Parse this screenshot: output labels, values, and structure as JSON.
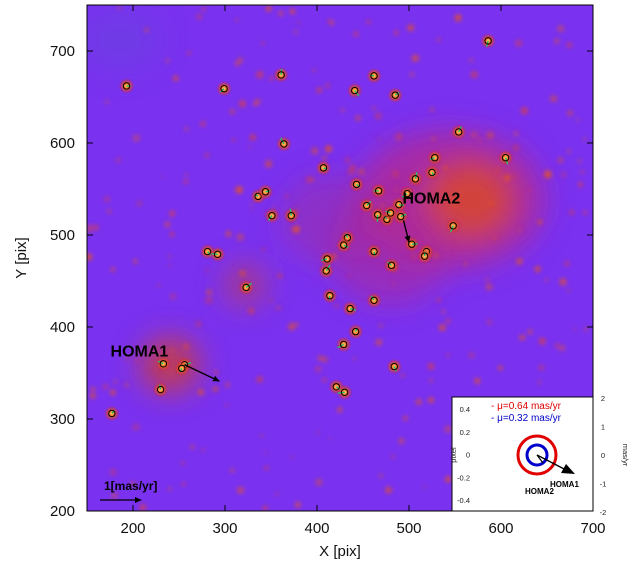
{
  "chart_data": {
    "type": "scatter",
    "xlabel": "X [pix]",
    "ylabel": "Y [pix]",
    "xlim": [
      150,
      700
    ],
    "ylim": [
      200,
      750
    ],
    "xticks": [
      "200",
      "300",
      "400",
      "500",
      "600",
      "700"
    ],
    "yticks": [
      "200",
      "300",
      "400",
      "500",
      "600",
      "700"
    ],
    "xtick_values": [
      200,
      300,
      400,
      500,
      600,
      700
    ],
    "ytick_values": [
      200,
      300,
      400,
      500,
      600,
      700
    ],
    "colors": {
      "background": "#7a32f0",
      "halo": "#e8401a",
      "core": "#ffe070",
      "vector": "#000000",
      "motion": "#18c070",
      "ring_outer": "#e00000",
      "ring_inner": "#0000cc"
    },
    "sources": [
      {
        "x": 193,
        "y": 662
      },
      {
        "x": 299,
        "y": 659
      },
      {
        "x": 361,
        "y": 674
      },
      {
        "x": 441,
        "y": 657
      },
      {
        "x": 462,
        "y": 673
      },
      {
        "x": 485,
        "y": 652
      },
      {
        "x": 586,
        "y": 711
      },
      {
        "x": 364,
        "y": 599
      },
      {
        "x": 407,
        "y": 573
      },
      {
        "x": 528,
        "y": 584
      },
      {
        "x": 554,
        "y": 612
      },
      {
        "x": 605,
        "y": 584
      },
      {
        "x": 336,
        "y": 542
      },
      {
        "x": 344,
        "y": 547
      },
      {
        "x": 351,
        "y": 521
      },
      {
        "x": 372,
        "y": 521
      },
      {
        "x": 443,
        "y": 555
      },
      {
        "x": 467,
        "y": 548
      },
      {
        "x": 454,
        "y": 532
      },
      {
        "x": 466,
        "y": 522
      },
      {
        "x": 476,
        "y": 517
      },
      {
        "x": 489,
        "y": 533
      },
      {
        "x": 498,
        "y": 545
      },
      {
        "x": 507,
        "y": 561
      },
      {
        "x": 525,
        "y": 568
      },
      {
        "x": 480,
        "y": 524
      },
      {
        "x": 491,
        "y": 520
      },
      {
        "x": 548,
        "y": 510
      },
      {
        "x": 433,
        "y": 497
      },
      {
        "x": 429,
        "y": 489
      },
      {
        "x": 411,
        "y": 474
      },
      {
        "x": 410,
        "y": 461
      },
      {
        "x": 462,
        "y": 482
      },
      {
        "x": 481,
        "y": 467
      },
      {
        "x": 503,
        "y": 490
      },
      {
        "x": 519,
        "y": 482
      },
      {
        "x": 517,
        "y": 477
      },
      {
        "x": 281,
        "y": 482
      },
      {
        "x": 292,
        "y": 479
      },
      {
        "x": 323,
        "y": 443
      },
      {
        "x": 414,
        "y": 434
      },
      {
        "x": 462,
        "y": 429
      },
      {
        "x": 436,
        "y": 420
      },
      {
        "x": 429,
        "y": 381
      },
      {
        "x": 442,
        "y": 395
      },
      {
        "x": 484,
        "y": 357
      },
      {
        "x": 233,
        "y": 360
      },
      {
        "x": 256,
        "y": 359
      },
      {
        "x": 253,
        "y": 355
      },
      {
        "x": 230,
        "y": 332
      },
      {
        "x": 421,
        "y": 335
      },
      {
        "x": 430,
        "y": 329
      },
      {
        "x": 177,
        "y": 306
      }
    ],
    "annotations": [
      {
        "text": "HOMA2",
        "x": 494,
        "y": 516,
        "tip_x": 500,
        "tip_y": 492
      },
      {
        "text": "HOMA1",
        "x": 256,
        "y": 359,
        "tip_x": 294,
        "tip_y": 341
      }
    ],
    "scale_label": "1[mas/yr]",
    "inset": {
      "legend": [
        "μ=0.64 mas/yr",
        "μ=0.32 mas/yr"
      ],
      "left_label": "pixel",
      "right_label": "mas/yr",
      "left_ticks": [
        "0.4",
        "0.2",
        "0",
        "-0.2",
        "-0.4"
      ],
      "right_ticks": [
        "2",
        "1",
        "0",
        "-1",
        "-2"
      ],
      "labels": [
        "HOMA1",
        "HOMA2"
      ]
    }
  }
}
